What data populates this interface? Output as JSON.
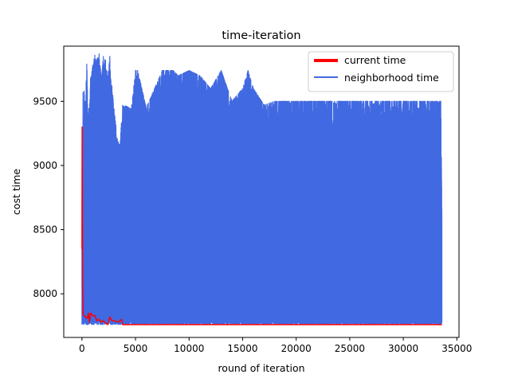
{
  "chart_data": {
    "type": "line",
    "title": "time-iteration",
    "xlabel": "round of iteration",
    "ylabel": "cost time",
    "xlim": [
      -1700,
      35200
    ],
    "ylim": [
      7660,
      9930
    ],
    "xticks": [
      0,
      5000,
      10000,
      15000,
      20000,
      25000,
      30000,
      35000
    ],
    "yticks": [
      8000,
      8500,
      9000,
      9500
    ],
    "grid": false,
    "legend_position": "top-right",
    "series": [
      {
        "name": "neighborhood time",
        "color": "#4169e1",
        "x_range": [
          0,
          33600
        ],
        "min_value": 7760,
        "max_value": 9880,
        "points_sample": [
          [
            0,
            8350
          ],
          [
            20,
            9300
          ],
          [
            60,
            7900
          ],
          [
            100,
            9570
          ],
          [
            150,
            7840
          ],
          [
            200,
            9580
          ],
          [
            300,
            9500
          ],
          [
            450,
            9790
          ],
          [
            600,
            9400
          ],
          [
            800,
            9680
          ],
          [
            1000,
            9780
          ],
          [
            1200,
            9860
          ],
          [
            1400,
            9830
          ],
          [
            1600,
            9870
          ],
          [
            1800,
            9700
          ],
          [
            2000,
            9850
          ],
          [
            2200,
            9820
          ],
          [
            2400,
            9700
          ],
          [
            2600,
            9850
          ],
          [
            2800,
            9620
          ],
          [
            3000,
            9440
          ],
          [
            3300,
            9210
          ],
          [
            3500,
            9160
          ],
          [
            3800,
            9470
          ],
          [
            4200,
            9460
          ],
          [
            4600,
            9440
          ],
          [
            5000,
            9740
          ],
          [
            5200,
            9740
          ],
          [
            6000,
            9450
          ],
          [
            7500,
            9740
          ],
          [
            8500,
            9740
          ],
          [
            9000,
            9700
          ],
          [
            10000,
            9740
          ],
          [
            11000,
            9700
          ],
          [
            12000,
            9600
          ],
          [
            13000,
            9740
          ],
          [
            14000,
            9500
          ],
          [
            15000,
            9600
          ],
          [
            15500,
            9740
          ],
          [
            16000,
            9600
          ],
          [
            17000,
            9470
          ],
          [
            18000,
            9500
          ],
          [
            19000,
            9500
          ],
          [
            20000,
            9500
          ],
          [
            22000,
            9500
          ],
          [
            24000,
            9500
          ],
          [
            26000,
            9500
          ],
          [
            28000,
            9500
          ],
          [
            30000,
            9500
          ],
          [
            32000,
            9500
          ],
          [
            33500,
            9500
          ],
          [
            33600,
            8660
          ]
        ]
      },
      {
        "name": "current time",
        "color": "#ff0000",
        "points": [
          [
            0,
            8350
          ],
          [
            20,
            9300
          ],
          [
            50,
            8100
          ],
          [
            100,
            7840
          ],
          [
            300,
            7820
          ],
          [
            500,
            7810
          ],
          [
            600,
            7850
          ],
          [
            700,
            7780
          ],
          [
            800,
            7850
          ],
          [
            1000,
            7830
          ],
          [
            1200,
            7830
          ],
          [
            1400,
            7790
          ],
          [
            1600,
            7800
          ],
          [
            1800,
            7780
          ],
          [
            2000,
            7790
          ],
          [
            2200,
            7770
          ],
          [
            2400,
            7760
          ],
          [
            2600,
            7820
          ],
          [
            2800,
            7790
          ],
          [
            3000,
            7790
          ],
          [
            3400,
            7780
          ],
          [
            3700,
            7800
          ],
          [
            3800,
            7760
          ],
          [
            5000,
            7760
          ],
          [
            10000,
            7760
          ],
          [
            20000,
            7760
          ],
          [
            30000,
            7760
          ],
          [
            33600,
            7760
          ]
        ]
      }
    ]
  }
}
